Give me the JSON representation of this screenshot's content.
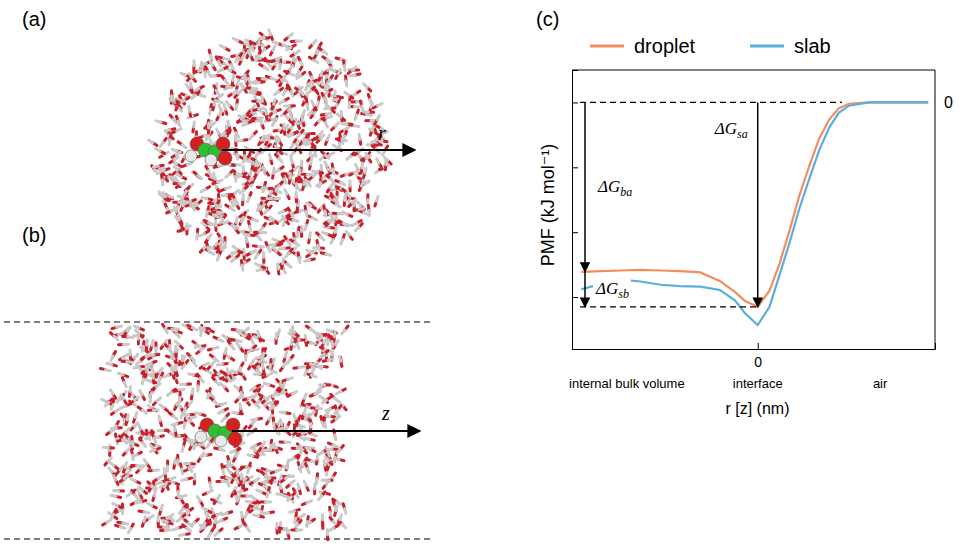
{
  "figure": {
    "panels": [
      "(a)",
      "(b)",
      "(c)"
    ],
    "droplet_coordinate": "r",
    "slab_coordinate": "z"
  },
  "chart_data": {
    "type": "line",
    "y_label": "PMF (kJ mol⁻¹)",
    "x_label": "r [z] (nm)",
    "x": [
      -2.09,
      -1.86,
      -1.62,
      -1.39,
      -1.15,
      -0.92,
      -0.68,
      -0.45,
      -0.27,
      -0.15,
      0,
      0.14,
      0.26,
      0.38,
      0.49,
      0.61,
      0.73,
      0.85,
      0.96,
      1.08,
      1.32,
      1.67,
      2.02
    ],
    "series": [
      {
        "name": "droplet",
        "color": "#f28e5e",
        "values": [
          -26.1,
          -26.0,
          -25.9,
          -25.8,
          -25.9,
          -26.0,
          -26.2,
          -27.5,
          -29.2,
          -30.6,
          -31.5,
          -29.0,
          -24.8,
          -19.6,
          -14.5,
          -9.8,
          -5.5,
          -2.6,
          -0.9,
          -0.2,
          0,
          0,
          0
        ]
      },
      {
        "name": "slab",
        "color": "#5aaed8",
        "values": [
          -28.8,
          -28.0,
          -27.3,
          -27.6,
          -28.1,
          -28.3,
          -28.4,
          -28.9,
          -30.5,
          -32.5,
          -34.3,
          -31.5,
          -26.5,
          -21.5,
          -16.5,
          -11.8,
          -7.3,
          -3.8,
          -1.6,
          -0.5,
          0,
          0,
          0
        ]
      }
    ],
    "xlim": [
      -2.2,
      2.1
    ],
    "ylim": [
      -38,
      5
    ],
    "xticks": [
      0
    ],
    "yticks": [
      -30,
      -20,
      -10,
      0
    ],
    "tick_labels": "x",
    "legend": "top",
    "annotations": [
      {
        "text": "ΔG",
        "sub": "ba"
      },
      {
        "text": "ΔG",
        "sub": "sb"
      },
      {
        "text": "ΔG",
        "sub": "sa"
      },
      {
        "text": "0",
        "y": 0
      }
    ],
    "regions": [
      {
        "text": "internal bulk volume",
        "x": -1.55
      },
      {
        "text": "interface",
        "x": 0
      },
      {
        "text": "air",
        "x": 1.45
      }
    ]
  }
}
